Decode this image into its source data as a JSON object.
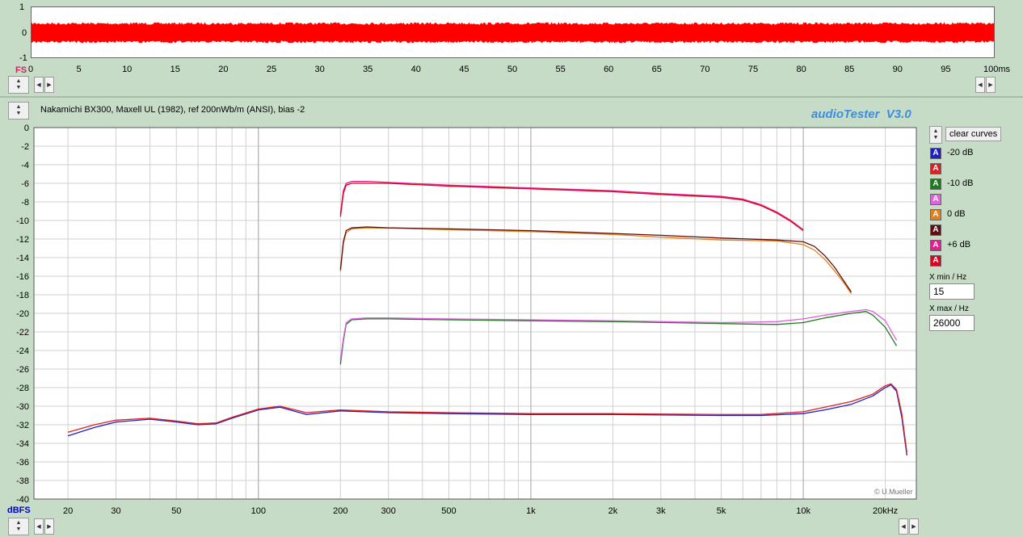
{
  "scope": {
    "y_labels": [
      "1",
      "0",
      "-1"
    ],
    "fs_label": "FS",
    "x_ticks": [
      "0",
      "5",
      "10",
      "15",
      "20",
      "25",
      "30",
      "35",
      "40",
      "45",
      "50",
      "55",
      "60",
      "65",
      "70",
      "75",
      "80",
      "85",
      "90",
      "95",
      "100ms"
    ],
    "signal_color": "#ff0000"
  },
  "header": {
    "title": "Nakamichi BX300, Maxell UL (1982), ref 200nWb/m (ANSI), bias -2",
    "brand": "audioTester  V3.0",
    "brand_color": "#3b8ee0"
  },
  "controls": {
    "clear_label": "clear curves",
    "xmin_label": "X min / Hz",
    "xmin_value": "15",
    "xmax_label": "X max / Hz",
    "xmax_value": "26000"
  },
  "legend": [
    {
      "label": "-20 dB",
      "color": "#2020c0"
    },
    {
      "label": "",
      "color": "#e02020"
    },
    {
      "label": "-10 dB",
      "color": "#207a20"
    },
    {
      "label": "",
      "color": "#e060e0"
    },
    {
      "label": "0 dB",
      "color": "#e08020"
    },
    {
      "label": "",
      "color": "#601010"
    },
    {
      "label": "+6 dB",
      "color": "#e02090"
    },
    {
      "label": "",
      "color": "#e00020"
    }
  ],
  "copyright": "© U.Mueller",
  "chart_data": {
    "type": "line",
    "xscale": "log",
    "xlim": [
      15,
      26000
    ],
    "ylim": [
      -40,
      0
    ],
    "ylabel": "dBFS",
    "x_tick_labels": [
      {
        "v": 20,
        "t": "20"
      },
      {
        "v": 30,
        "t": "30"
      },
      {
        "v": 50,
        "t": "50"
      },
      {
        "v": 100,
        "t": "100"
      },
      {
        "v": 200,
        "t": "200"
      },
      {
        "v": 300,
        "t": "300"
      },
      {
        "v": 500,
        "t": "500"
      },
      {
        "v": 1000,
        "t": "1k"
      },
      {
        "v": 2000,
        "t": "2k"
      },
      {
        "v": 3000,
        "t": "3k"
      },
      {
        "v": 5000,
        "t": "5k"
      },
      {
        "v": 10000,
        "t": "10k"
      },
      {
        "v": 20000,
        "t": "20kHz"
      }
    ],
    "y_ticks": [
      0,
      -2,
      -4,
      -6,
      -8,
      -10,
      -12,
      -14,
      -16,
      -18,
      -20,
      -22,
      -24,
      -26,
      -28,
      -30,
      -32,
      -34,
      -36,
      -38,
      -40
    ],
    "grid": true,
    "series": [
      {
        "name": "-20 dB",
        "color": "#2020c0",
        "x": [
          20,
          25,
          30,
          40,
          50,
          60,
          70,
          80,
          100,
          120,
          150,
          200,
          300,
          500,
          1000,
          2000,
          5000,
          7000,
          10000,
          12000,
          15000,
          18000,
          20000,
          21000,
          22000,
          23000,
          24000
        ],
        "y": [
          -33.2,
          -32.3,
          -31.7,
          -31.4,
          -31.7,
          -32.0,
          -31.9,
          -31.3,
          -30.4,
          -30.1,
          -30.9,
          -30.5,
          -30.7,
          -30.8,
          -30.9,
          -30.9,
          -31.0,
          -31.0,
          -30.8,
          -30.4,
          -29.8,
          -28.9,
          -28.0,
          -27.7,
          -28.4,
          -31.2,
          -35.3
        ]
      },
      {
        "name": "",
        "color": "#e02020",
        "x": [
          20,
          25,
          30,
          40,
          50,
          60,
          70,
          80,
          100,
          120,
          150,
          200,
          300,
          500,
          1000,
          2000,
          5000,
          7000,
          10000,
          12000,
          15000,
          18000,
          20000,
          21000,
          22000,
          23000,
          24000
        ],
        "y": [
          -32.8,
          -32.0,
          -31.5,
          -31.3,
          -31.6,
          -31.9,
          -31.8,
          -31.2,
          -30.3,
          -30.0,
          -30.7,
          -30.4,
          -30.6,
          -30.7,
          -30.8,
          -30.8,
          -30.9,
          -30.9,
          -30.6,
          -30.1,
          -29.5,
          -28.7,
          -27.8,
          -27.6,
          -28.2,
          -30.8,
          -35.0
        ]
      },
      {
        "name": "-10 dB",
        "color": "#207a20",
        "x": [
          200,
          205,
          210,
          220,
          250,
          300,
          500,
          1000,
          2000,
          5000,
          8000,
          10000,
          12000,
          15000,
          17000,
          18000,
          20000,
          22000
        ],
        "y": [
          -25.5,
          -23.0,
          -21.2,
          -20.7,
          -20.6,
          -20.6,
          -20.7,
          -20.8,
          -20.9,
          -21.1,
          -21.2,
          -21.0,
          -20.5,
          -20.0,
          -19.8,
          -20.2,
          -21.5,
          -23.5
        ]
      },
      {
        "name": "",
        "color": "#e060e0",
        "x": [
          200,
          205,
          210,
          220,
          250,
          300,
          500,
          1000,
          2000,
          5000,
          8000,
          10000,
          12000,
          15000,
          17000,
          18000,
          20000,
          22000
        ],
        "y": [
          -25.0,
          -22.7,
          -21.0,
          -20.6,
          -20.5,
          -20.5,
          -20.6,
          -20.7,
          -20.8,
          -21.0,
          -20.9,
          -20.6,
          -20.2,
          -19.8,
          -19.6,
          -19.8,
          -20.8,
          -22.9
        ]
      },
      {
        "name": "0 dB",
        "color": "#e08020",
        "x": [
          200,
          205,
          210,
          220,
          250,
          300,
          500,
          1000,
          2000,
          3000,
          5000,
          8000,
          10000,
          11000,
          12000,
          13000,
          14000,
          15000
        ],
        "y": [
          -15.5,
          -12.5,
          -11.3,
          -10.9,
          -10.8,
          -10.8,
          -11.0,
          -11.2,
          -11.5,
          -11.8,
          -12.1,
          -12.2,
          -12.6,
          -13.2,
          -14.2,
          -15.4,
          -16.6,
          -17.9
        ]
      },
      {
        "name": "",
        "color": "#601010",
        "x": [
          200,
          205,
          210,
          220,
          250,
          300,
          500,
          1000,
          2000,
          3000,
          5000,
          8000,
          10000,
          11000,
          12000,
          13000,
          14000,
          15000
        ],
        "y": [
          -15.3,
          -12.3,
          -11.1,
          -10.8,
          -10.7,
          -10.8,
          -10.9,
          -11.1,
          -11.4,
          -11.6,
          -11.9,
          -12.1,
          -12.3,
          -12.8,
          -13.8,
          -15.0,
          -16.4,
          -17.7
        ]
      },
      {
        "name": "+6 dB",
        "color": "#e02090",
        "x": [
          200,
          205,
          210,
          220,
          250,
          300,
          500,
          1000,
          2000,
          3000,
          5000,
          6000,
          7000,
          8000,
          9000,
          10000
        ],
        "y": [
          -9.3,
          -6.8,
          -6.0,
          -5.8,
          -5.8,
          -5.9,
          -6.2,
          -6.5,
          -6.8,
          -7.1,
          -7.4,
          -7.7,
          -8.3,
          -9.1,
          -10.0,
          -11.0
        ]
      },
      {
        "name": "",
        "color": "#e00020",
        "x": [
          200,
          205,
          210,
          220,
          250,
          300,
          500,
          1000,
          2000,
          3000,
          5000,
          6000,
          7000,
          8000,
          9000,
          10000
        ],
        "y": [
          -9.6,
          -7.1,
          -6.2,
          -6.0,
          -6.0,
          -6.0,
          -6.3,
          -6.6,
          -6.9,
          -7.2,
          -7.5,
          -7.8,
          -8.4,
          -9.2,
          -10.1,
          -11.1
        ]
      }
    ]
  }
}
